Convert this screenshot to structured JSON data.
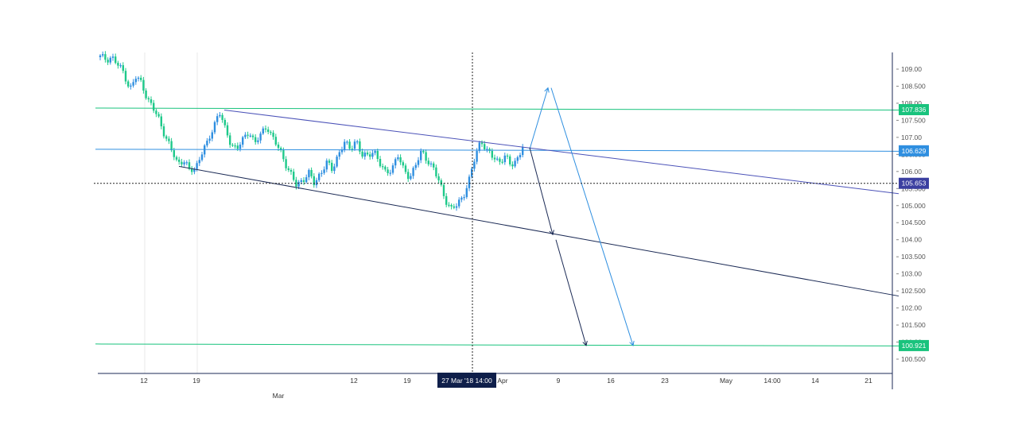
{
  "chart_data": {
    "type": "candlestick",
    "title": "",
    "xlabel": "",
    "ylabel": "",
    "ylim": [
      100.15,
      109.5
    ],
    "y_ticks": [
      {
        "value": 109.0,
        "label": "109.00"
      },
      {
        "value": 108.5,
        "label": "108.500"
      },
      {
        "value": 108.0,
        "label": "108.00"
      },
      {
        "value": 107.5,
        "label": "107.500"
      },
      {
        "value": 107.0,
        "label": "107.00"
      },
      {
        "value": 106.5,
        "label": "106.500"
      },
      {
        "value": 106.0,
        "label": "106.00"
      },
      {
        "value": 105.5,
        "label": "105.500"
      },
      {
        "value": 105.0,
        "label": "105.000"
      },
      {
        "value": 104.5,
        "label": "104.500"
      },
      {
        "value": 104.0,
        "label": "104.00"
      },
      {
        "value": 103.5,
        "label": "103.500"
      },
      {
        "value": 103.0,
        "label": "103.00"
      },
      {
        "value": 102.5,
        "label": "102.500"
      },
      {
        "value": 102.0,
        "label": "102.00"
      },
      {
        "value": 101.5,
        "label": "101.500"
      },
      {
        "value": 101.0,
        "label": "101.00"
      },
      {
        "value": 100.5,
        "label": "100.500"
      }
    ],
    "x_ticks": [
      {
        "label": "12",
        "sub": ""
      },
      {
        "label": "19",
        "sub": ""
      },
      {
        "label": "",
        "sub": "Mar"
      },
      {
        "label": "12",
        "sub": ""
      },
      {
        "label": "19",
        "sub": ""
      },
      {
        "label": "Apr",
        "sub": ""
      },
      {
        "label": "9",
        "sub": ""
      },
      {
        "label": "16",
        "sub": ""
      },
      {
        "label": "23",
        "sub": ""
      },
      {
        "label": "May",
        "sub": ""
      },
      {
        "label": "14:00",
        "sub": ""
      },
      {
        "label": "14",
        "sub": ""
      },
      {
        "label": "21",
        "sub": ""
      }
    ],
    "crosshair": {
      "x_label": "27 Mar '18 14:00",
      "y_label": "105.653",
      "y_value": 105.653
    },
    "price_levels": [
      {
        "name": "resistance",
        "label": "107.836",
        "value": 107.836,
        "color": "#19c37d"
      },
      {
        "name": "current",
        "label": "106.629",
        "value": 106.629,
        "color": "#2f8fe0"
      },
      {
        "name": "support",
        "label": "100.921",
        "value": 100.921,
        "color": "#19c37d"
      }
    ],
    "price_path": [
      109.35,
      109.3,
      109.35,
      109.1,
      108.9,
      108.4,
      108.75,
      108.6,
      108.1,
      107.8,
      107.5,
      107.0,
      106.6,
      106.25,
      106.35,
      106.0,
      106.1,
      106.55,
      106.8,
      107.3,
      107.8,
      107.2,
      106.8,
      106.7,
      106.9,
      107.2,
      106.85,
      107.05,
      107.35,
      107.0,
      106.65,
      106.3,
      105.95,
      105.55,
      105.75,
      106.0,
      105.6,
      105.95,
      106.3,
      106.0,
      106.5,
      106.9,
      106.6,
      106.95,
      106.5,
      106.4,
      106.65,
      106.25,
      105.9,
      106.1,
      106.5,
      106.0,
      105.85,
      106.2,
      106.55,
      106.35,
      106.1,
      105.65,
      105.2,
      104.9,
      105.0,
      105.3,
      105.75,
      106.4,
      106.95,
      106.6,
      106.4,
      106.3,
      106.45,
      106.15,
      106.35,
      106.75
    ],
    "candle_colors": {
      "up": "#2f8fe0",
      "down": "#1ec98a"
    },
    "line_colors": {
      "channel_upper": "#4b52b8",
      "channel_lower": "#1b2a55",
      "bull_arrow": "#2f8fe0",
      "bear_arrow": "#1b2a55",
      "axis": "#1b2a55",
      "gridline": "#e8e8e8"
    }
  }
}
